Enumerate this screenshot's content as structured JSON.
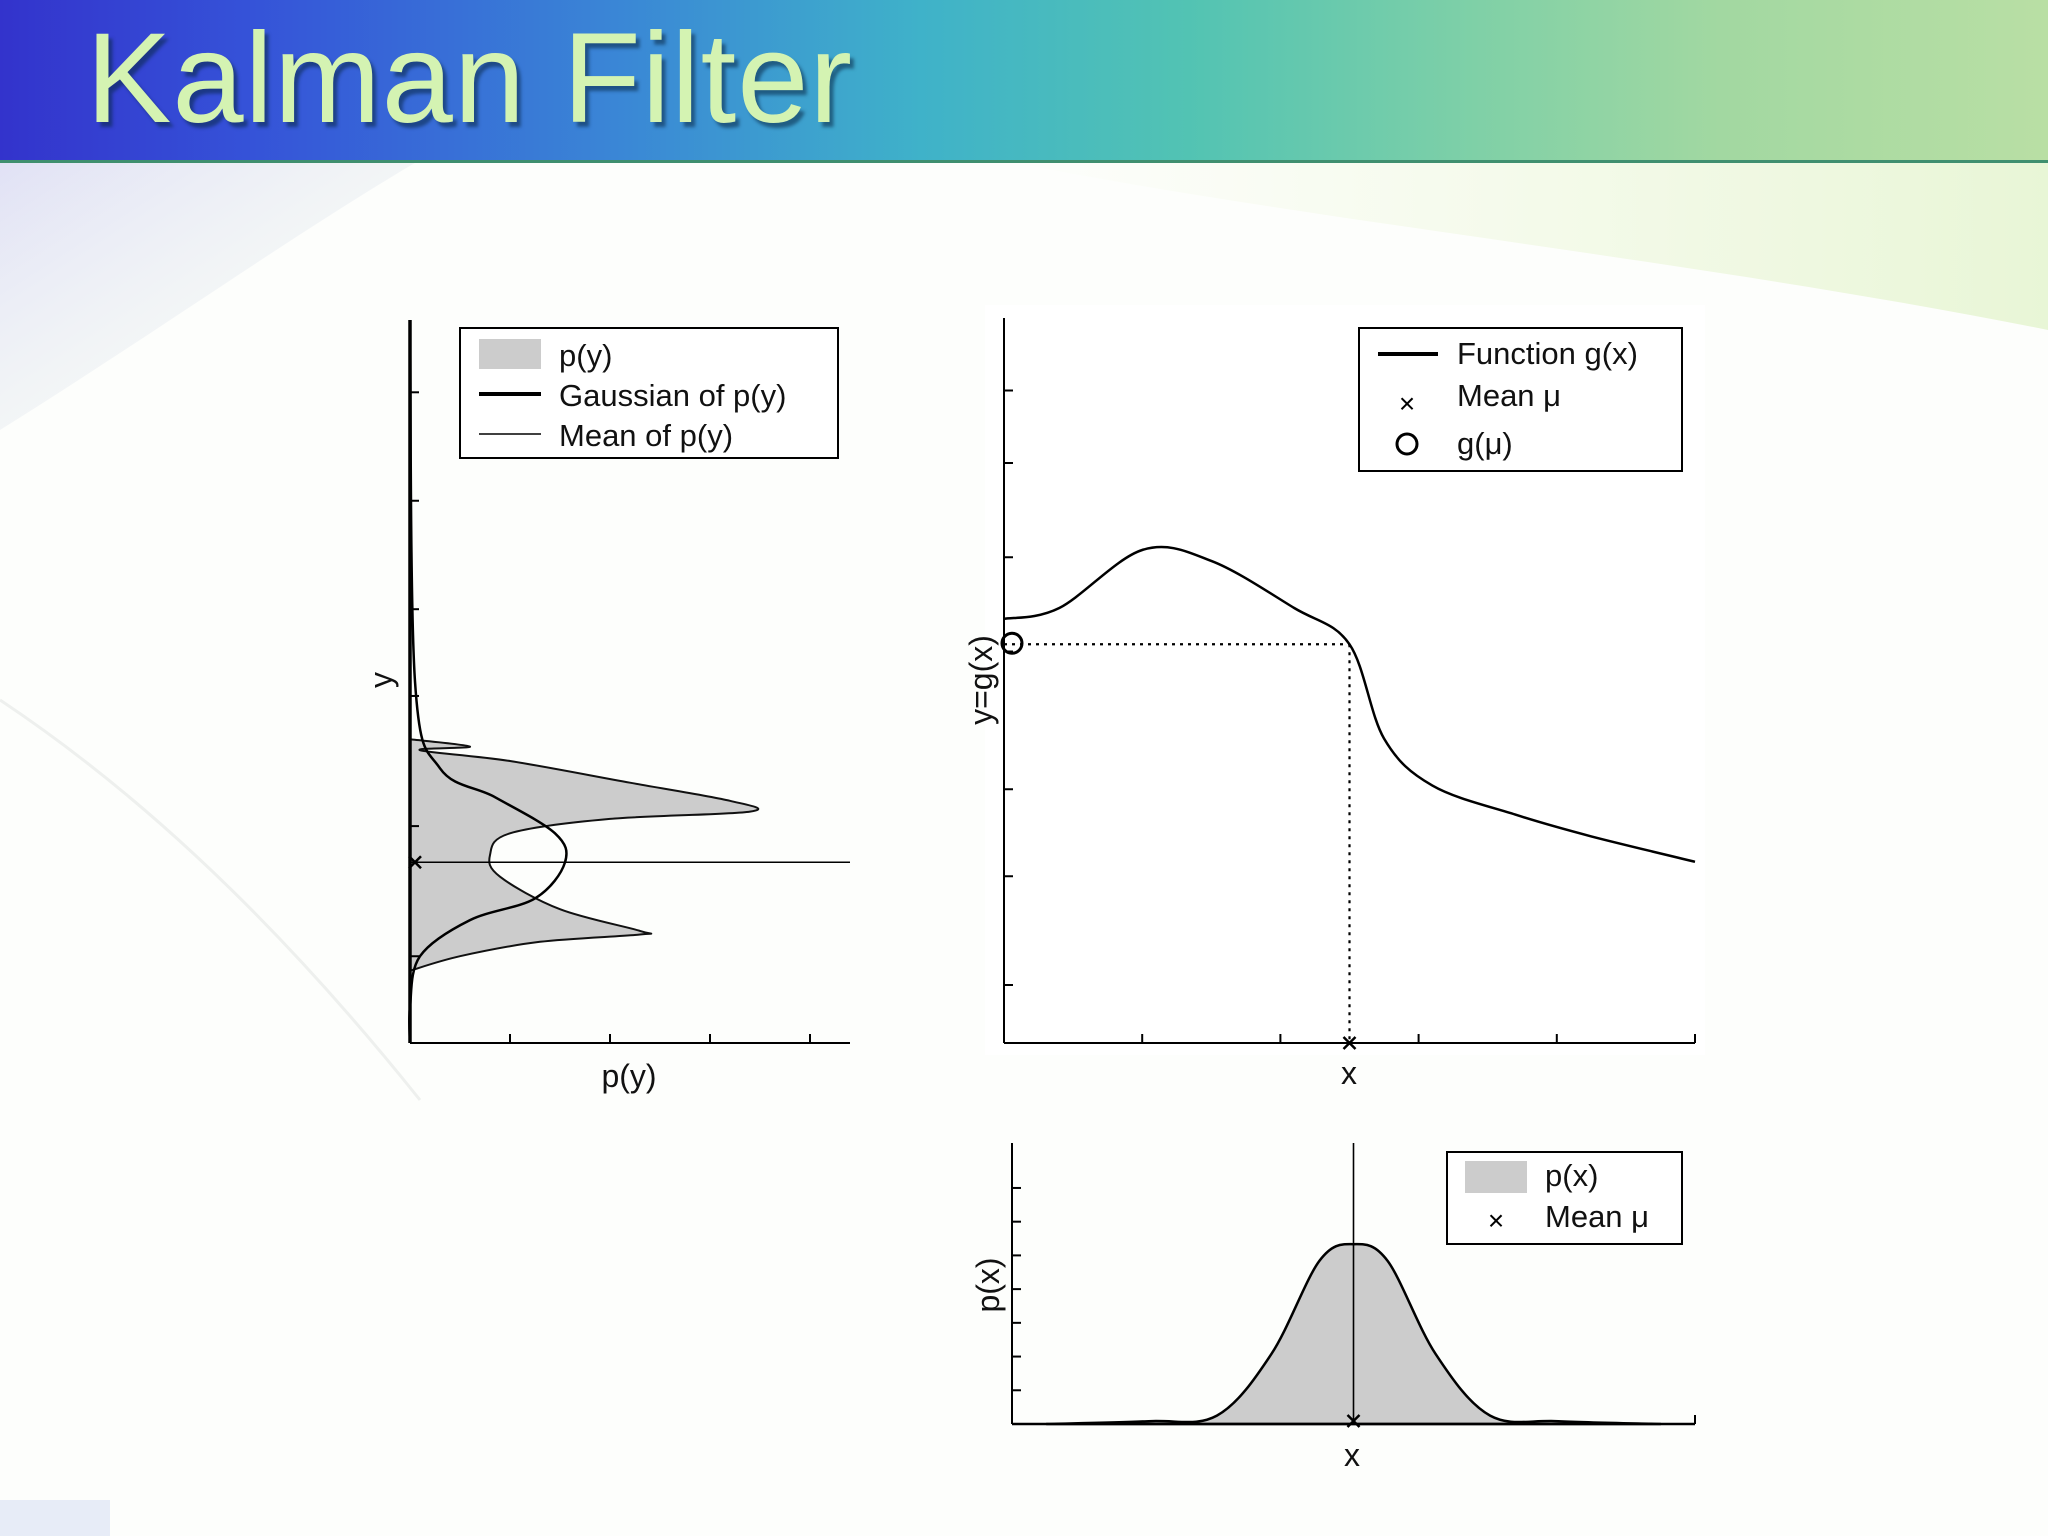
{
  "slide": {
    "title": "Kalman Filter"
  },
  "chart_data": [
    {
      "id": "py",
      "type": "area",
      "orientation": "horizontal",
      "xlabel": "p(y)",
      "ylabel": "y",
      "grid": false,
      "legend_position": "top",
      "series": [
        {
          "name": "p(y)",
          "kind": "filled-area",
          "color": "#cccccc",
          "values": [
            [
              0.0,
              0.58
            ],
            [
              0.6,
              0.59
            ],
            [
              0.1,
              0.595
            ],
            [
              1.0,
              0.61
            ],
            [
              2.2,
              0.64
            ],
            [
              3.2,
              0.665
            ],
            [
              3.4,
              0.68
            ],
            [
              2.0,
              0.69
            ],
            [
              1.0,
              0.71
            ],
            [
              0.8,
              0.74
            ],
            [
              0.9,
              0.77
            ],
            [
              1.5,
              0.815
            ],
            [
              2.3,
              0.845
            ],
            [
              2.3,
              0.85
            ],
            [
              1.3,
              0.86
            ],
            [
              0.5,
              0.88
            ],
            [
              0.0,
              0.9
            ]
          ]
        },
        {
          "name": "Gaussian of p(y)",
          "kind": "line",
          "color": "#000000",
          "values": [
            [
              0.0,
              0.0
            ],
            [
              0.05,
              0.5
            ],
            [
              0.3,
              0.62
            ],
            [
              0.85,
              0.66
            ],
            [
              1.45,
              0.71
            ],
            [
              1.55,
              0.75
            ],
            [
              1.25,
              0.8
            ],
            [
              0.6,
              0.83
            ],
            [
              0.1,
              0.88
            ],
            [
              0.0,
              0.95
            ],
            [
              0.0,
              1.0
            ]
          ]
        },
        {
          "name": "Mean of p(y)",
          "kind": "line",
          "color": "#000000",
          "y": 0.75
        }
      ],
      "mean_marker": {
        "x": 0,
        "y": 0.75
      }
    },
    {
      "id": "gx",
      "type": "line",
      "xlabel": "x",
      "ylabel": "y=g(x)",
      "grid": false,
      "legend_position": "top-right",
      "series": [
        {
          "name": "Function g(x)",
          "color": "#000000",
          "values": [
            [
              0.0,
              0.585
            ],
            [
              0.08,
              0.6
            ],
            [
              0.2,
              0.68
            ],
            [
              0.3,
              0.665
            ],
            [
              0.42,
              0.6
            ],
            [
              0.5,
              0.55
            ],
            [
              0.55,
              0.42
            ],
            [
              0.62,
              0.355
            ],
            [
              0.74,
              0.315
            ],
            [
              0.85,
              0.285
            ],
            [
              1.0,
              0.25
            ]
          ]
        },
        {
          "name": "Mean μ",
          "marker": "x",
          "values": [
            [
              0.5,
              0.0
            ]
          ]
        },
        {
          "name": "g(μ)",
          "marker": "circle",
          "values": [
            [
              0.0,
              0.55
            ]
          ]
        }
      ],
      "guides": {
        "vertical_at_x": 0.5,
        "horizontal_at_y": 0.55,
        "style": "dotted"
      }
    },
    {
      "id": "px",
      "type": "area",
      "xlabel": "x",
      "ylabel": "p(x)",
      "grid": false,
      "legend_position": "top-right",
      "series": [
        {
          "name": "p(x)",
          "kind": "filled-area",
          "color": "#cccccc",
          "values": [
            [
              0.05,
              0.0
            ],
            [
              0.2,
              0.01
            ],
            [
              0.3,
              0.03
            ],
            [
              0.38,
              0.25
            ],
            [
              0.45,
              0.58
            ],
            [
              0.5,
              0.64
            ],
            [
              0.55,
              0.58
            ],
            [
              0.62,
              0.25
            ],
            [
              0.7,
              0.03
            ],
            [
              0.8,
              0.01
            ],
            [
              0.95,
              0.0
            ]
          ]
        },
        {
          "name": "Mean μ",
          "marker": "x",
          "values": [
            [
              0.5,
              0.0
            ]
          ]
        }
      ],
      "guides": {
        "vertical_at_x": 0.5
      }
    }
  ],
  "legends": {
    "py": [
      "p(y)",
      "Gaussian of p(y)",
      "Mean of p(y)"
    ],
    "gx": [
      "Function g(x)",
      "Mean μ",
      "g(μ)"
    ],
    "px": [
      "p(x)",
      "Mean μ"
    ]
  }
}
